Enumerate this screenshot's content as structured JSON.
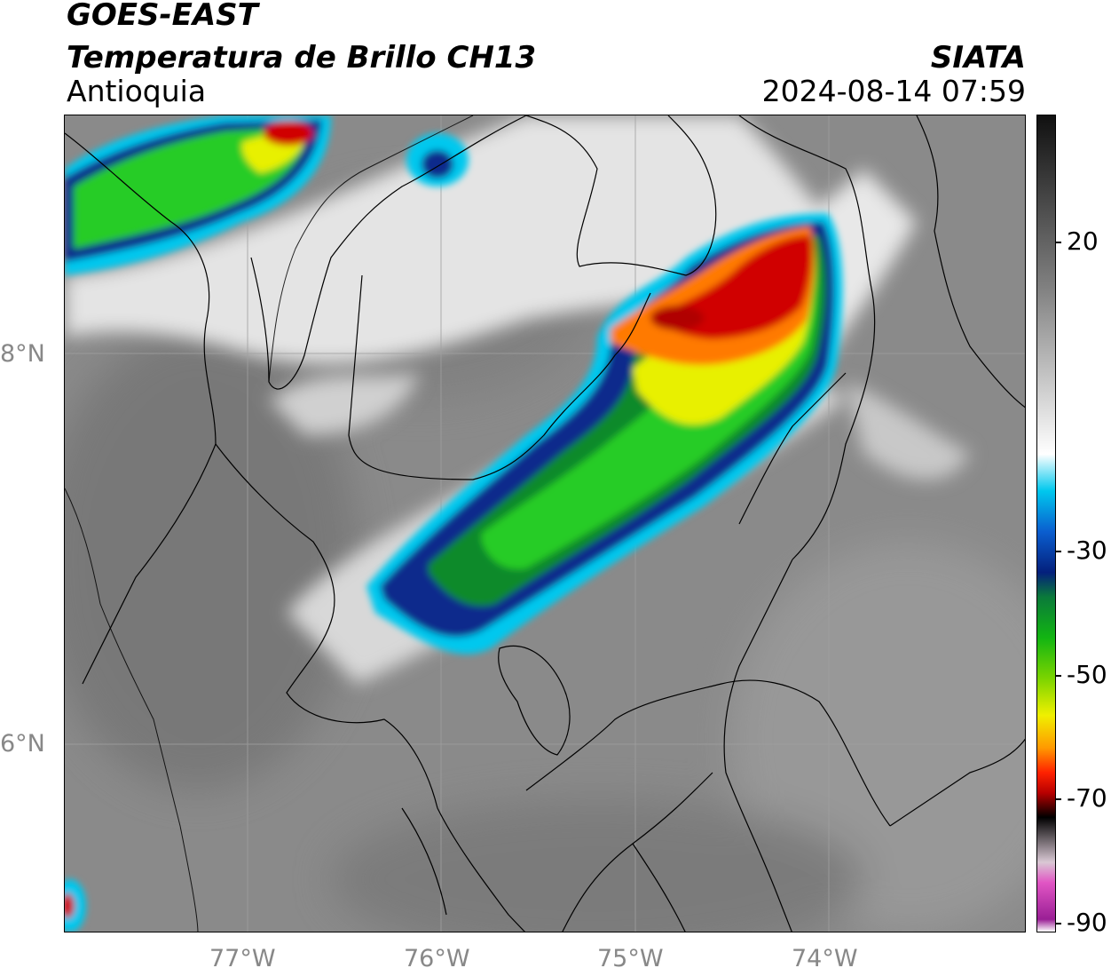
{
  "header": {
    "satellite": "GOES-EAST",
    "product": "Temperatura de Brillo CH13",
    "region": "Antioquia",
    "organization": "SIATA",
    "timestamp": "2024-08-14 07:59"
  },
  "map": {
    "latitude_labels": [
      "8°N",
      "6°N"
    ],
    "longitude_labels": [
      "77°W",
      "76°W",
      "75°W",
      "74°W"
    ],
    "colors": {
      "background_gray": "#8a8a8a",
      "cold_cloud_white": "#f2f2f2",
      "cyan": "#00c8ee",
      "blue": "#0a2c8c",
      "green": "#1ec81e",
      "yellow": "#e8f000",
      "orange": "#ff7a00",
      "red": "#d00000",
      "border_line": "#000000",
      "gridline": "#a0a0a0"
    }
  },
  "colorbar": {
    "tick_labels": [
      "20",
      "-30",
      "-50",
      "-70",
      "-90"
    ],
    "range": [
      -90,
      40
    ],
    "colors": [
      "#ffffff",
      "#9a1f95",
      "#e155c4",
      "#d9c8d4",
      "#000000",
      "#b80000",
      "#ff2200",
      "#ff9900",
      "#f0f000",
      "#7cd400",
      "#12b512",
      "#0a7a3a",
      "#04207c",
      "#0a5ecf",
      "#00c8ee",
      "#ffffff",
      "#808080",
      "#101010"
    ]
  }
}
